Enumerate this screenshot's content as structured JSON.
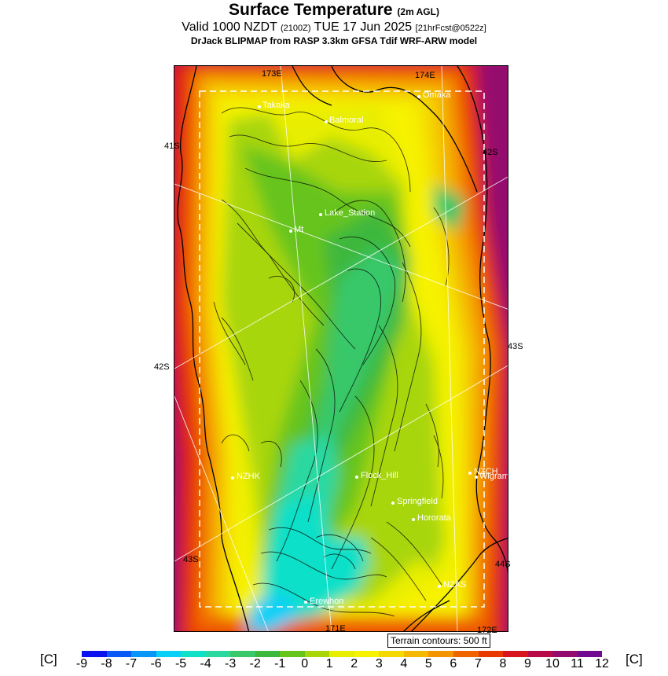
{
  "header": {
    "title": "Surface Temperature",
    "title_small": "(2m AGL)",
    "valid_main_1": "Valid 1000 NZDT",
    "valid_small_1": "(2100Z)",
    "valid_main_2": "TUE 17 Jun 2025",
    "valid_small_2": "[21hrFcst@0522z]",
    "model": "DrJack BLIPMAP from RASP 3.3km GFSA Tdif WRF-ARW model"
  },
  "map": {
    "coord_labels": [
      "173E",
      "174E",
      "41S",
      "42S",
      "43S",
      "42S",
      "43S",
      "44S",
      "171E",
      "172E"
    ],
    "places": [
      "Takaka",
      "Balmoral",
      "Omaka",
      "Lake_Station",
      "Mt",
      "NZHK",
      "Flock_Hill",
      "NZCH",
      "Wigram",
      "Springfield",
      "Hororata",
      "NZAS",
      "Erewhon"
    ],
    "terrain_note": "Terrain contours: 500 ft"
  },
  "colorbar": {
    "unit": "[C]",
    "ticks": [
      "-9",
      "-8",
      "-7",
      "-6",
      "-5",
      "-4",
      "-3",
      "-2",
      "-1",
      "0",
      "1",
      "2",
      "3",
      "4",
      "5",
      "6",
      "7",
      "8",
      "9",
      "10",
      "11",
      "12"
    ],
    "colors": [
      "#0a12f0",
      "#0a58f5",
      "#0a96f7",
      "#0ad0f7",
      "#0fe0c8",
      "#2ad8a0",
      "#39c86a",
      "#3cb83c",
      "#66c41a",
      "#a8d60a",
      "#e8ee00",
      "#f6f200",
      "#f4d800",
      "#f4b800",
      "#f49400",
      "#f06400",
      "#e83800",
      "#d8141e",
      "#b80a46",
      "#940a6e",
      "#700a90"
    ]
  }
}
